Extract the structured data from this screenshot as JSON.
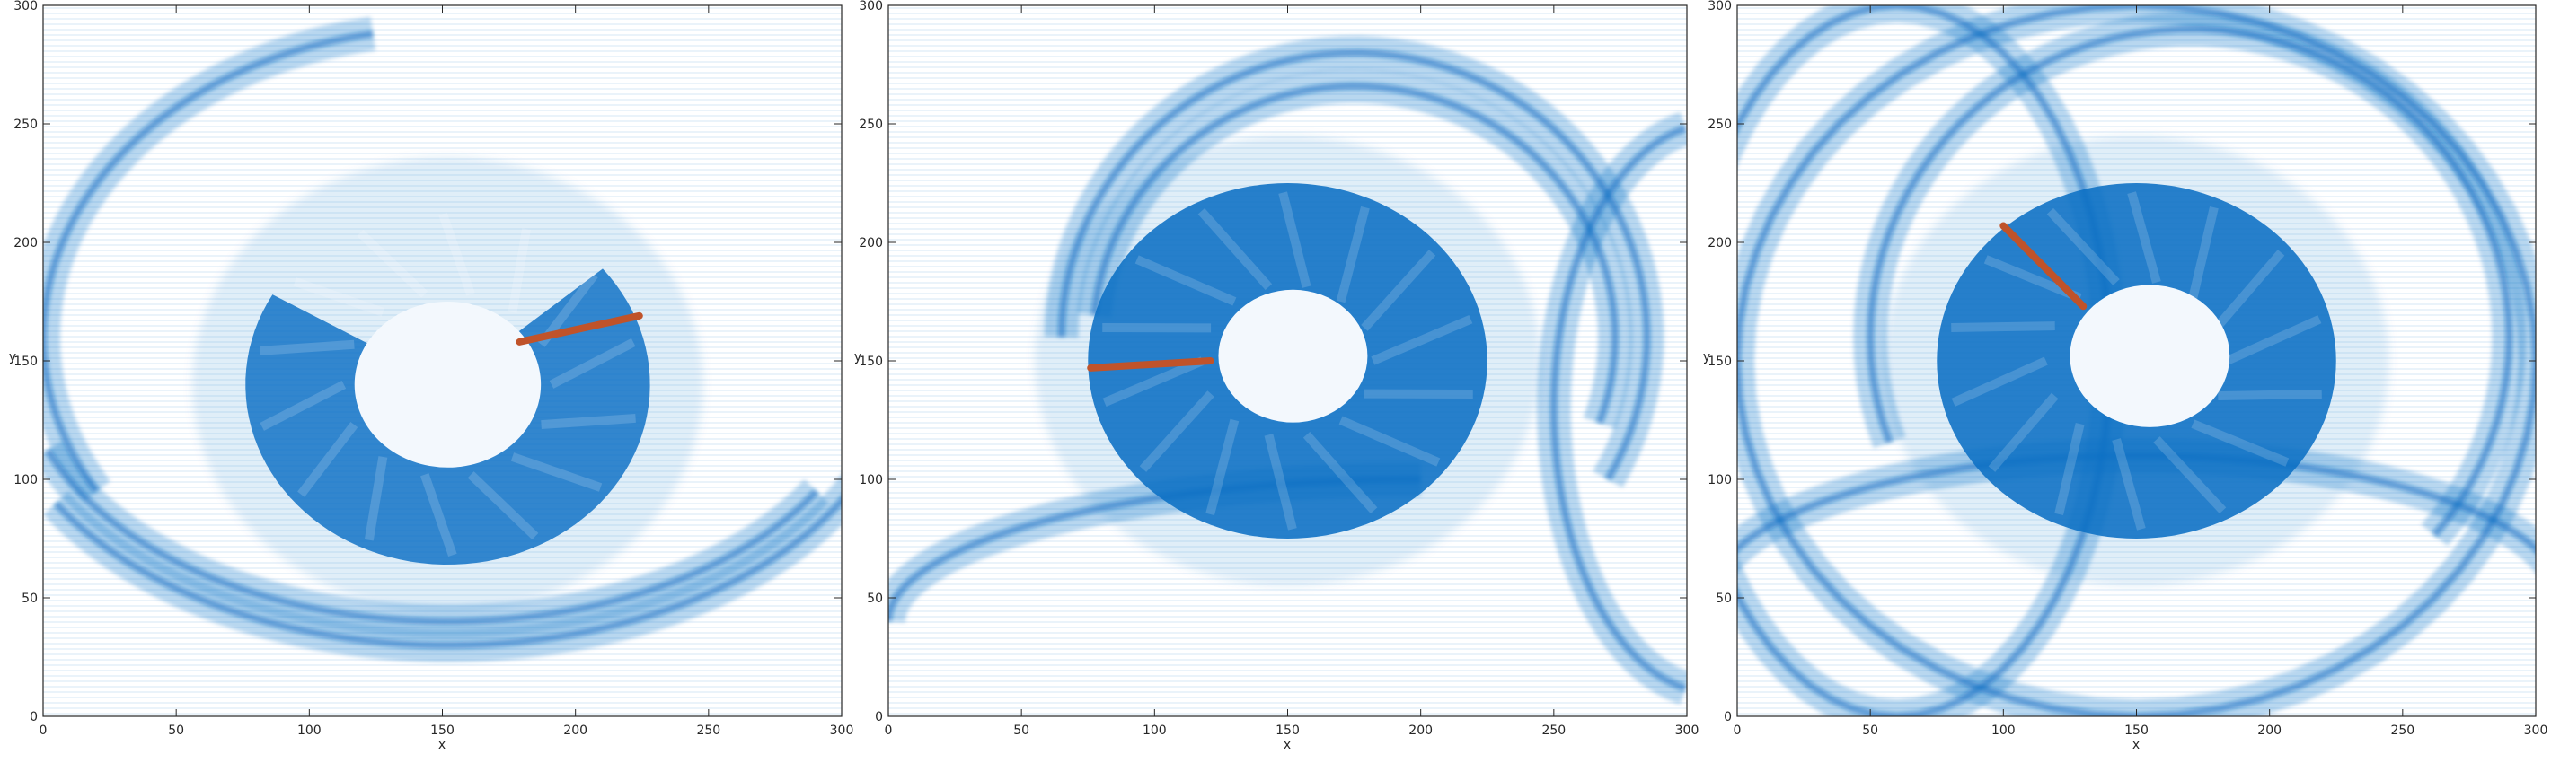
{
  "figure": {
    "panel_count": 3
  },
  "chart_data": [
    {
      "type": "heatmap",
      "title": "",
      "xlabel": "x",
      "ylabel": "y",
      "xlim": [
        0,
        300
      ],
      "ylim": [
        0,
        300
      ],
      "xticks": [
        "0",
        "50",
        "100",
        "150",
        "200",
        "250",
        "300"
      ],
      "yticks": [
        "0",
        "50",
        "100",
        "150",
        "200",
        "250",
        "300"
      ],
      "colormap": {
        "low": "#ffffff",
        "high": "#0b6fc4"
      },
      "rotor_line": {
        "color": "#c0532a",
        "x": [
          179,
          224
        ],
        "y": [
          158,
          169
        ]
      },
      "features": {
        "inner_hole": {
          "cx": 152,
          "cy": 140,
          "r": 35
        },
        "annulus": {
          "cx": 152,
          "cy": 140,
          "r_outer": 76,
          "arc_from_deg": 150,
          "arc_to_deg": 400
        },
        "wave_fronts": [
          {
            "cx": 152,
            "cy": 150,
            "rx": 160,
            "ry": 110,
            "start": 200,
            "end": 330
          },
          {
            "cx": 152,
            "cy": 150,
            "rx": 170,
            "ry": 120,
            "start": 210,
            "end": 340
          },
          {
            "cx": 150,
            "cy": 160,
            "rx": 150,
            "ry": 130,
            "start": 100,
            "end": 210
          }
        ]
      }
    },
    {
      "type": "heatmap",
      "title": "",
      "xlabel": "x",
      "ylabel": "y",
      "xlim": [
        0,
        300
      ],
      "ylim": [
        0,
        300
      ],
      "xticks": [
        "0",
        "50",
        "100",
        "150",
        "200",
        "250",
        "300"
      ],
      "yticks": [
        "0",
        "50",
        "100",
        "150",
        "200",
        "250",
        "300"
      ],
      "colormap": {
        "low": "#ffffff",
        "high": "#0b6fc4"
      },
      "rotor_line": {
        "color": "#c0532a",
        "x": [
          76,
          121
        ],
        "y": [
          147,
          150
        ]
      },
      "features": {
        "inner_hole": {
          "cx": 152,
          "cy": 152,
          "r": 28
        },
        "annulus": {
          "cx": 150,
          "cy": 150,
          "r_outer": 75,
          "arc_from_deg": 0,
          "arc_to_deg": 360
        },
        "wave_fronts": [
          {
            "cx": 175,
            "cy": 160,
            "rx": 110,
            "ry": 120,
            "start": -30,
            "end": 180
          },
          {
            "cx": 175,
            "cy": 160,
            "rx": 98,
            "ry": 106,
            "start": -20,
            "end": 175
          },
          {
            "cx": 310,
            "cy": 130,
            "rx": 60,
            "ry": 120,
            "start": 100,
            "end": 260
          },
          {
            "cx": 200,
            "cy": 40,
            "rx": 200,
            "ry": 60,
            "start": 90,
            "end": 180
          }
        ]
      }
    },
    {
      "type": "heatmap",
      "title": "",
      "xlabel": "x",
      "ylabel": "y",
      "xlim": [
        0,
        300
      ],
      "ylim": [
        0,
        300
      ],
      "xticks": [
        "0",
        "50",
        "100",
        "150",
        "200",
        "250",
        "300"
      ],
      "yticks": [
        "0",
        "50",
        "100",
        "150",
        "200",
        "250",
        "300"
      ],
      "colormap": {
        "low": "#ffffff",
        "high": "#0b6fc4"
      },
      "rotor_line": {
        "color": "#c0532a",
        "x": [
          100,
          130
        ],
        "y": [
          207,
          173
        ]
      },
      "features": {
        "inner_hole": {
          "cx": 155,
          "cy": 152,
          "r": 30
        },
        "annulus": {
          "cx": 150,
          "cy": 150,
          "r_outer": 75,
          "arc_from_deg": 0,
          "arc_to_deg": 360
        },
        "wave_fronts": [
          {
            "cx": 170,
            "cy": 160,
            "rx": 120,
            "ry": 130,
            "start": -40,
            "end": 200
          },
          {
            "cx": 150,
            "cy": 150,
            "rx": 150,
            "ry": 150,
            "start": 0,
            "end": 360
          },
          {
            "cx": 60,
            "cy": 150,
            "rx": 80,
            "ry": 150,
            "start": 0,
            "end": 360
          },
          {
            "cx": 150,
            "cy": 50,
            "rx": 160,
            "ry": 60,
            "start": 0,
            "end": 180
          }
        ]
      }
    }
  ]
}
